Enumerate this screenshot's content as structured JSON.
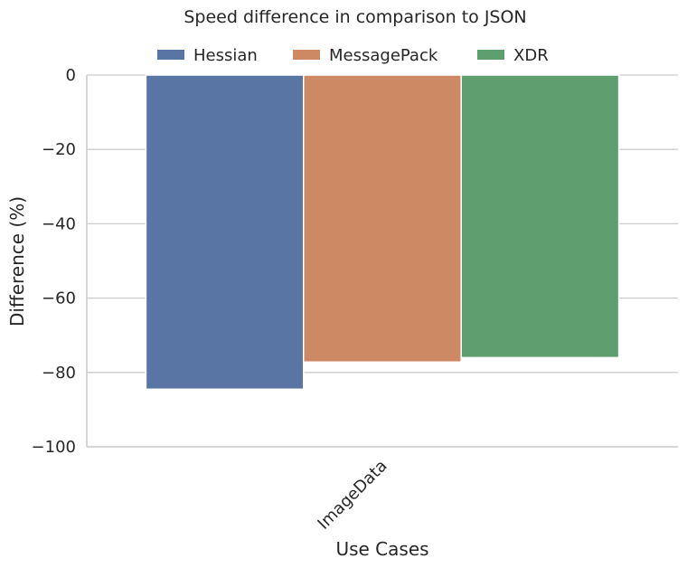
{
  "chart_data": {
    "type": "bar",
    "title": "Speed difference in comparison to JSON",
    "xlabel": "Use Cases",
    "ylabel": "Difference (%)",
    "categories": [
      "ImageData"
    ],
    "series": [
      {
        "name": "Hessian",
        "values": [
          -84.5
        ],
        "color": "#5875a4"
      },
      {
        "name": "MessagePack",
        "values": [
          -77.2
        ],
        "color": "#cc8963"
      },
      {
        "name": "XDR",
        "values": [
          -76.0
        ],
        "color": "#5f9e6e"
      }
    ],
    "ylim": [
      -100,
      0
    ],
    "yticks": [
      0,
      -20,
      -40,
      -60,
      -80,
      -100
    ],
    "ytick_labels": [
      "0",
      "−20",
      "−40",
      "−60",
      "−80",
      "−100"
    ],
    "grid": "horizontal",
    "legend_position": "top-center"
  }
}
